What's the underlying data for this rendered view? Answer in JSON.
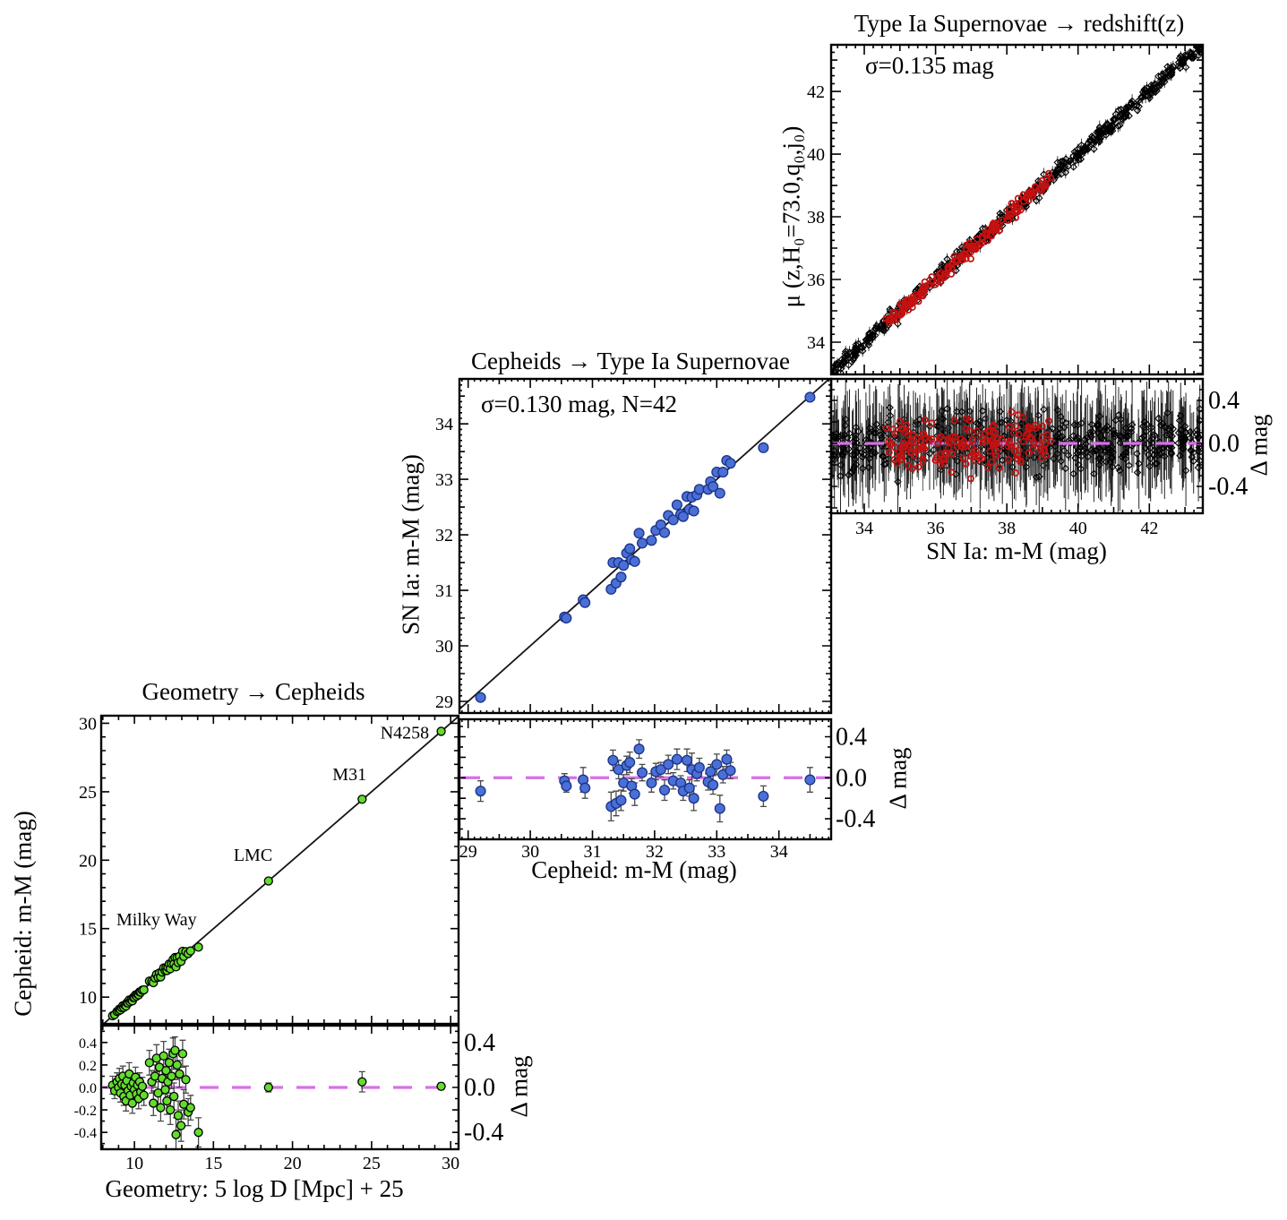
{
  "figure": {
    "background": "#ffffff"
  },
  "colors": {
    "cepheid_green": "#63DC2C",
    "sn_blue": "#4A6FD6",
    "sn_blue_edge": "#1B3386",
    "calibrator_red": "#C31010",
    "hubble_black": "#000000",
    "zero_line": "#D66FE6",
    "fit_line": "#151515",
    "error_bar": "#4A4A4A"
  },
  "chart_data": [
    {
      "id": "geometry-to-cepheids",
      "type": "scatter",
      "title": "Geometry → Cepheids",
      "xlabel": "Geometry: 5 log D [Mpc] + 25",
      "ylabel": "Cepheid: m-M (mag)",
      "xlim": [
        7.9,
        30.5
      ],
      "ylim": [
        8.05,
        30.55
      ],
      "xticks": [
        10,
        15,
        20,
        25,
        30
      ],
      "yticks": [
        10,
        15,
        20,
        25,
        30
      ],
      "identity_line": true,
      "galaxy_labels": [
        {
          "text": "Milky Way",
          "x": 11.4,
          "y": 15.7
        },
        {
          "text": "LMC",
          "x": 17.5,
          "y": 20.4
        },
        {
          "text": "M31",
          "x": 23.6,
          "y": 26.3
        },
        {
          "text": "N4258",
          "x": 27.1,
          "y": 29.35
        }
      ],
      "residual": {
        "ylabel": "Δ mag",
        "ylim": [
          -0.55,
          0.55
        ],
        "yticks_left": [
          "0.4",
          "0.2",
          "0.0",
          "-0.2",
          "-0.4"
        ],
        "yticks_right": [
          "0.4",
          "0.0",
          "-0.4"
        ],
        "zero": 0.0
      },
      "series": [
        {
          "name": "geometric-cepheid-anchors",
          "marker": "circle",
          "color": "cepheid_green",
          "edge": "black",
          "points": [
            [
              8.62,
              0.02,
              0.08
            ],
            [
              8.75,
              -0.03,
              0.07
            ],
            [
              8.9,
              0.05,
              0.08
            ],
            [
              9.0,
              0.0,
              0.06
            ],
            [
              9.05,
              0.08,
              0.09
            ],
            [
              9.12,
              -0.05,
              0.08
            ],
            [
              9.2,
              0.03,
              0.07
            ],
            [
              9.27,
              0.1,
              0.09
            ],
            [
              9.33,
              -0.08,
              0.08
            ],
            [
              9.4,
              0.02,
              0.06
            ],
            [
              9.47,
              -0.12,
              0.09
            ],
            [
              9.53,
              0.06,
              0.07
            ],
            [
              9.6,
              -0.03,
              0.08
            ],
            [
              9.67,
              0.12,
              0.1
            ],
            [
              9.73,
              -0.07,
              0.08
            ],
            [
              9.8,
              0.01,
              0.06
            ],
            [
              9.87,
              -0.14,
              0.09
            ],
            [
              9.93,
              0.04,
              0.07
            ],
            [
              10.0,
              -0.02,
              0.08
            ],
            [
              10.07,
              0.09,
              0.09
            ],
            [
              10.13,
              -0.06,
              0.07
            ],
            [
              10.2,
              0.02,
              0.06
            ],
            [
              10.27,
              -0.1,
              0.09
            ],
            [
              10.33,
              0.05,
              0.08
            ],
            [
              10.4,
              -0.04,
              0.07
            ],
            [
              10.5,
              0.01,
              0.08
            ],
            [
              10.6,
              -0.07,
              0.09
            ],
            [
              10.95,
              0.22,
              0.11
            ],
            [
              11.1,
              0.05,
              0.1
            ],
            [
              11.2,
              -0.14,
              0.11
            ],
            [
              11.3,
              0.1,
              0.1
            ],
            [
              11.4,
              0.26,
              0.12
            ],
            [
              11.5,
              -0.05,
              0.1
            ],
            [
              11.58,
              0.18,
              0.11
            ],
            [
              11.66,
              -0.18,
              0.12
            ],
            [
              11.75,
              0.08,
              0.1
            ],
            [
              11.85,
              0.28,
              0.13
            ],
            [
              11.95,
              -0.02,
              0.1
            ],
            [
              12.0,
              0.15,
              0.11
            ],
            [
              12.06,
              -0.12,
              0.12
            ],
            [
              12.12,
              0.05,
              0.1
            ],
            [
              12.2,
              0.22,
              0.12
            ],
            [
              12.27,
              -0.2,
              0.13
            ],
            [
              12.35,
              0.1,
              0.11
            ],
            [
              12.45,
              0.3,
              0.14
            ],
            [
              12.5,
              -0.08,
              0.12
            ],
            [
              12.57,
              0.33,
              0.12
            ],
            [
              12.63,
              -0.42,
              0.15
            ],
            [
              12.7,
              0.2,
              0.13
            ],
            [
              12.77,
              -0.25,
              0.13
            ],
            [
              12.85,
              0.12,
              0.12
            ],
            [
              12.95,
              -0.34,
              0.14
            ],
            [
              13.05,
              0.3,
              0.12
            ],
            [
              13.12,
              -0.15,
              0.13
            ],
            [
              13.25,
              0.07,
              0.12
            ],
            [
              13.4,
              -0.22,
              0.12
            ],
            [
              13.55,
              -0.18,
              0.11
            ],
            [
              14.05,
              -0.4,
              0.13
            ],
            [
              18.48,
              0.0,
              0.04
            ],
            [
              24.4,
              0.05,
              0.09
            ],
            [
              29.4,
              0.01,
              0.03
            ]
          ]
        }
      ]
    },
    {
      "id": "cepheids-to-snia",
      "type": "scatter",
      "title": "Cepheids → Type Ia Supernovae",
      "annotation": "σ=0.130 mag, N=42",
      "xlabel": "Cepheid: m-M (mag)",
      "ylabel": "SN Ia: m-M (mag)",
      "xlim": [
        28.86,
        34.84
      ],
      "ylim": [
        28.79,
        34.81
      ],
      "xticks": [
        29,
        30,
        31,
        32,
        33,
        34
      ],
      "yticks": [
        29,
        30,
        31,
        32,
        33,
        34
      ],
      "identity_line": true,
      "residual": {
        "ylabel": "Δ mag",
        "ylim": [
          -0.6,
          0.57
        ],
        "yticks_right": [
          "0.4",
          "0.0",
          "-0.4"
        ],
        "zero": 0.0
      },
      "series": [
        {
          "name": "cepheid-calibrated-snia",
          "marker": "circle",
          "color": "sn_blue",
          "edge": "sn_blue_edge",
          "points": [
            [
              29.2,
              -0.13,
              0.1
            ],
            [
              30.55,
              -0.03,
              0.07
            ],
            [
              30.58,
              -0.08,
              0.06
            ],
            [
              30.85,
              -0.02,
              0.12
            ],
            [
              30.88,
              -0.1,
              0.1
            ],
            [
              31.3,
              -0.28,
              0.14
            ],
            [
              31.33,
              0.17,
              0.1
            ],
            [
              31.38,
              -0.25,
              0.12
            ],
            [
              31.42,
              0.08,
              0.09
            ],
            [
              31.46,
              -0.22,
              0.1
            ],
            [
              31.5,
              -0.05,
              0.08
            ],
            [
              31.55,
              0.12,
              0.09
            ],
            [
              31.6,
              0.15,
              0.1
            ],
            [
              31.63,
              -0.08,
              0.07
            ],
            [
              31.68,
              -0.16,
              0.11
            ],
            [
              31.75,
              0.28,
              0.09
            ],
            [
              31.8,
              0.05,
              0.08
            ],
            [
              31.95,
              -0.05,
              0.09
            ],
            [
              32.02,
              0.06,
              0.08
            ],
            [
              32.1,
              0.08,
              0.07
            ],
            [
              32.16,
              -0.12,
              0.1
            ],
            [
              32.22,
              0.13,
              0.09
            ],
            [
              32.3,
              -0.03,
              0.08
            ],
            [
              32.36,
              0.18,
              0.1
            ],
            [
              32.42,
              -0.05,
              0.07
            ],
            [
              32.46,
              -0.13,
              0.09
            ],
            [
              32.52,
              0.17,
              0.11
            ],
            [
              32.56,
              -0.1,
              0.08
            ],
            [
              32.6,
              0.08,
              0.16
            ],
            [
              32.63,
              -0.2,
              0.12
            ],
            [
              32.68,
              0.04,
              0.07
            ],
            [
              32.72,
              0.1,
              0.09
            ],
            [
              32.86,
              -0.04,
              0.08
            ],
            [
              32.9,
              0.06,
              0.07
            ],
            [
              32.94,
              -0.07,
              0.09
            ],
            [
              33.0,
              0.13,
              0.1
            ],
            [
              33.05,
              -0.3,
              0.13
            ],
            [
              33.1,
              0.03,
              0.08
            ],
            [
              33.16,
              0.18,
              0.09
            ],
            [
              33.22,
              0.07,
              0.08
            ],
            [
              33.75,
              -0.18,
              0.1
            ],
            [
              34.5,
              -0.02,
              0.12
            ]
          ]
        }
      ]
    },
    {
      "id": "snia-to-redshift",
      "type": "scatter",
      "title": "Type Ia Supernovae → redshift(z)",
      "annotation": "σ=0.135 mag",
      "xlabel": "SN Ia: m-M (mag)",
      "ylabel": "μ (z,H₀=73.0,q₀,j₀)",
      "xlim": [
        33.07,
        43.5
      ],
      "ylim": [
        32.97,
        43.49
      ],
      "xticks": [
        34,
        36,
        38,
        40,
        42
      ],
      "yticks": [
        34,
        36,
        38,
        40,
        42
      ],
      "identity_line": true,
      "residual": {
        "ylabel": "Δ mag",
        "ylim": [
          -0.65,
          0.6
        ],
        "yticks_right": [
          "0.4",
          "0.0",
          "-0.4"
        ],
        "zero": 0.0
      },
      "series": [
        {
          "name": "hubble-flow-snia",
          "marker": "diamond-open",
          "color": "hubble_black",
          "generate": {
            "seed": 12345,
            "n": 520,
            "x_min": 33.1,
            "x_max": 43.45,
            "sigma": 0.132,
            "err_min": 0.15,
            "err_max": 0.45
          }
        },
        {
          "name": "calibrator-overlap-snia",
          "marker": "circle-open",
          "color": "calibrator_red",
          "generate": {
            "seed": 777,
            "n": 175,
            "x_min": 34.6,
            "x_max": 39.25,
            "sigma": 0.115,
            "err_min": 0.12,
            "err_max": 0.28
          }
        }
      ]
    }
  ]
}
